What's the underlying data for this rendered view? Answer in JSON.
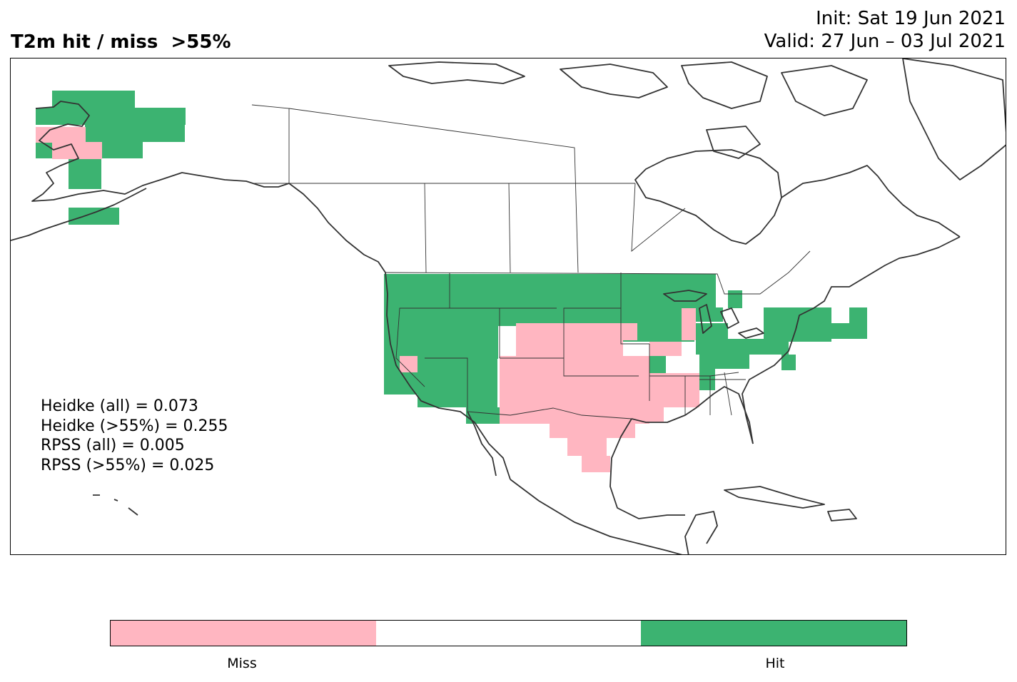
{
  "header": {
    "title": "T2m hit / miss  >55%",
    "init": "Init: Sat 19 Jun 2021",
    "valid": "Valid: 27 Jun – 03 Jul 2021"
  },
  "stats": [
    "Heidke (all) = 0.073",
    "Heidke (>55%) = 0.255",
    "RPSS (all) = 0.005",
    "RPSS (>55%) = 0.025"
  ],
  "colorbar": {
    "segments": [
      {
        "label": "Miss",
        "color": "#ffb6c1"
      },
      {
        "label": "",
        "color": "#ffffff"
      },
      {
        "label": "Hit",
        "color": "#3cb371"
      }
    ]
  },
  "colors": {
    "hit": "#3cb371",
    "miss": "#ffb6c1",
    "coast": "#333333"
  }
}
